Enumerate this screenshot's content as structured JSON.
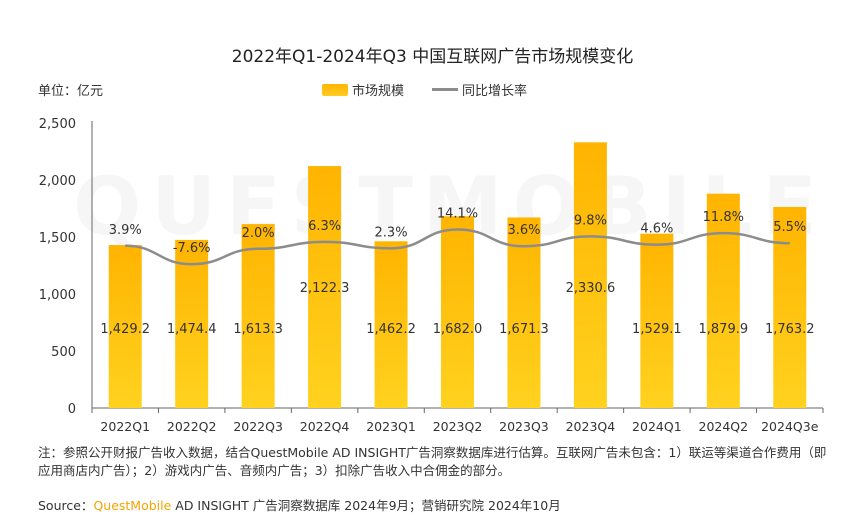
{
  "header": {
    "title": "2022年Q1-2024年Q3 中国互联网广告市场规模变化"
  },
  "unit_label": "单位：亿元",
  "legend": {
    "bar_label": "市场规模",
    "line_label": "同比增长率"
  },
  "watermark": "QUESTMOBILE",
  "chart_data": {
    "type": "bar",
    "title": "2022年Q1-2024年Q3 中国互联网广告市场规模变化",
    "categories": [
      "2022Q1",
      "2022Q2",
      "2022Q3",
      "2022Q4",
      "2023Q1",
      "2023Q2",
      "2023Q3",
      "2023Q4",
      "2024Q1",
      "2024Q2",
      "2024Q3e"
    ],
    "series": [
      {
        "name": "市场规模",
        "type": "bar",
        "values": [
          1429.2,
          1474.4,
          1613.3,
          2122.3,
          1462.2,
          1682.0,
          1671.3,
          2330.6,
          1529.1,
          1879.9,
          1763.2
        ],
        "labels": [
          "1,429.2",
          "1,474.4",
          "1,613.3",
          "2,122.3",
          "1,462.2",
          "1,682.0",
          "1,671.3",
          "2,330.6",
          "1,529.1",
          "1,879.9",
          "1,763.2"
        ]
      },
      {
        "name": "同比增长率",
        "type": "line",
        "values": [
          3.9,
          -7.6,
          2.0,
          6.3,
          2.3,
          14.1,
          3.6,
          9.8,
          4.6,
          11.8,
          5.5
        ],
        "labels": [
          "3.9%",
          "-7.6%",
          "2.0%",
          "6.3%",
          "2.3%",
          "14.1%",
          "3.6%",
          "9.8%",
          "4.6%",
          "11.8%",
          "5.5%"
        ]
      }
    ],
    "y_ticks": [
      "0",
      "500",
      "1,000",
      "1,500",
      "2,000",
      "2,500"
    ],
    "ylim": [
      0,
      2500
    ],
    "grid": false,
    "legend_position": "top-center",
    "colors": {
      "bar_top": "#ffb400",
      "bar_bottom": "#ffd21f",
      "line": "#8c8c8c"
    }
  },
  "note": "注：参照公开财报广告收入数据，结合QuestMobile AD INSIGHT广告洞察数据库进行估算。互联网广告未包含：1）联运等渠道合作费用（即应用商店内广告）；2）游戏内广告、音频内广告；3）扣除广告收入中合佣金的部分。",
  "source": {
    "prefix": "Source：",
    "brand": "QuestMobile",
    "rest": " AD INSIGHT 广告洞察数据库 2024年9月；营销研究院 2024年10月"
  }
}
